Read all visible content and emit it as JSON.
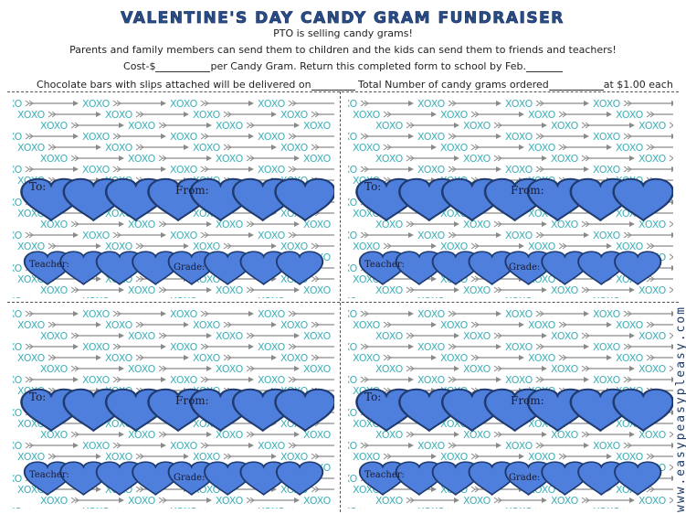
{
  "header": {
    "title": "VALENTINE'S DAY CANDY GRAM FUNDRAISER",
    "line1": "PTO is selling candy grams!",
    "line2": "Parents and family members can send them to children and the kids can send them to friends and teachers!",
    "cost_prefix": "Cost-$",
    "cost_mid": "per Candy Gram. Return this completed form to school by Feb.",
    "delivery_text": "Chocolate bars with slips attached will be delivered on",
    "total_text": "Total Number of candy grams ordered",
    "price_text": "at $1.00 each"
  },
  "card": {
    "pattern_word": "XOXO",
    "to_label": "To:",
    "from_label": "From:",
    "teacher_label": "Teacher:",
    "grade_label": "Grade:"
  },
  "colors": {
    "heart_fill": "#4f7fdc",
    "heart_stroke": "#1f3a6e",
    "xoxo": "#3fb0b8",
    "arrow": "#8a8a8a",
    "title_fill": "#2b4f8c"
  },
  "watermark": "www.easypeasypleasy.com"
}
